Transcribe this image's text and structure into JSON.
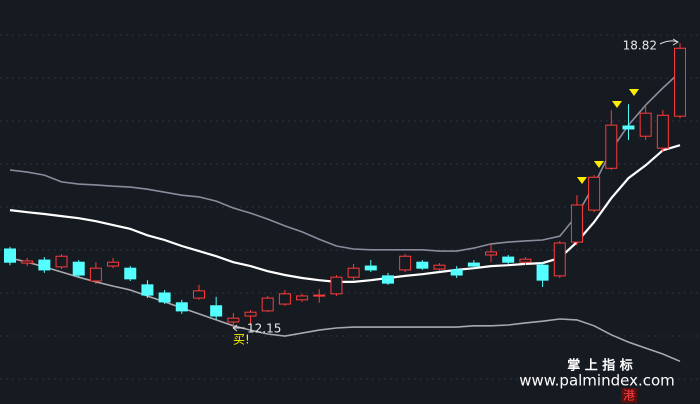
{
  "chart_data": {
    "type": "candlestick",
    "open": [
      14.0,
      13.67,
      13.74,
      13.58,
      13.69,
      13.25,
      13.6,
      13.55,
      13.16,
      12.97,
      12.74,
      12.85,
      12.67,
      12.29,
      12.43,
      12.55,
      12.71,
      12.81,
      12.9,
      12.95,
      13.34,
      13.6,
      13.37,
      13.51,
      13.69,
      13.53,
      13.51,
      13.67,
      13.86,
      13.81,
      13.69,
      13.62,
      13.37,
      14.16,
      14.91,
      15.89,
      16.88,
      16.64,
      16.36,
      17.11
    ],
    "high": [
      14.05,
      13.79,
      13.81,
      13.88,
      13.74,
      13.69,
      13.79,
      13.6,
      13.27,
      13.04,
      12.81,
      13.16,
      12.88,
      12.5,
      12.57,
      12.9,
      13.04,
      12.95,
      13.06,
      13.39,
      13.65,
      13.74,
      13.44,
      13.88,
      13.74,
      13.67,
      13.6,
      13.74,
      14.12,
      13.86,
      13.81,
      13.67,
      14.19,
      15.26,
      15.73,
      17.25,
      17.39,
      17.37,
      17.25,
      18.82
    ],
    "low": [
      13.62,
      13.6,
      13.44,
      13.53,
      13.34,
      13.18,
      13.55,
      13.25,
      12.85,
      12.71,
      12.48,
      12.81,
      12.34,
      12.15,
      12.24,
      12.52,
      12.67,
      12.76,
      12.74,
      12.9,
      13.27,
      13.46,
      13.16,
      13.46,
      13.51,
      13.48,
      13.32,
      13.55,
      13.69,
      13.65,
      13.62,
      13.11,
      13.32,
      14.09,
      14.86,
      15.85,
      16.55,
      16.55,
      16.27,
      17.06
    ],
    "close": [
      13.69,
      13.72,
      13.51,
      13.83,
      13.39,
      13.55,
      13.69,
      13.3,
      12.92,
      12.76,
      12.55,
      13.02,
      12.43,
      12.38,
      12.52,
      12.85,
      12.95,
      12.9,
      12.92,
      13.34,
      13.55,
      13.51,
      13.2,
      13.83,
      13.55,
      13.62,
      13.39,
      13.6,
      13.93,
      13.69,
      13.76,
      13.27,
      14.14,
      15.03,
      15.68,
      16.9,
      16.81,
      17.18,
      17.13,
      18.7
    ],
    "up_color": "#ff3b3b",
    "down_color": "#54ffff",
    "bands": [
      {
        "color": "#8a8c9c",
        "values": [
          15.85,
          15.8,
          15.73,
          15.57,
          15.52,
          15.5,
          15.47,
          15.45,
          15.4,
          15.33,
          15.26,
          15.22,
          15.12,
          14.96,
          14.84,
          14.7,
          14.54,
          14.4,
          14.23,
          14.07,
          14.0,
          13.98,
          13.98,
          13.98,
          13.98,
          13.95,
          13.95,
          14.02,
          14.12,
          14.16,
          14.19,
          14.21,
          14.3,
          14.79,
          15.5,
          16.32,
          16.9,
          17.37,
          17.77,
          18.14
        ]
      },
      {
        "color": "#ffffff",
        "values": [
          14.91,
          14.86,
          14.82,
          14.77,
          14.72,
          14.65,
          14.56,
          14.47,
          14.32,
          14.21,
          14.07,
          13.95,
          13.83,
          13.69,
          13.6,
          13.48,
          13.39,
          13.32,
          13.27,
          13.23,
          13.23,
          13.27,
          13.32,
          13.37,
          13.41,
          13.46,
          13.51,
          13.55,
          13.6,
          13.62,
          13.65,
          13.67,
          13.79,
          14.16,
          14.63,
          15.19,
          15.66,
          15.96,
          16.31,
          16.43
        ]
      },
      {
        "color": "#a8a8b0",
        "values": [
          13.79,
          13.69,
          13.58,
          13.46,
          13.34,
          13.23,
          13.13,
          13.04,
          12.9,
          12.76,
          12.62,
          12.48,
          12.34,
          12.2,
          12.1,
          12.01,
          11.96,
          12.03,
          12.1,
          12.15,
          12.17,
          12.17,
          12.17,
          12.17,
          12.17,
          12.17,
          12.17,
          12.2,
          12.2,
          12.22,
          12.27,
          12.31,
          12.36,
          12.34,
          12.2,
          11.99,
          11.82,
          11.68,
          11.54,
          11.37
        ]
      }
    ],
    "ylim": [
      10.37,
      19.83
    ],
    "signal_text": "买!",
    "watermark": [
      "掌 上 指 标",
      "www.palmindex.com"
    ],
    "badge": "港"
  }
}
